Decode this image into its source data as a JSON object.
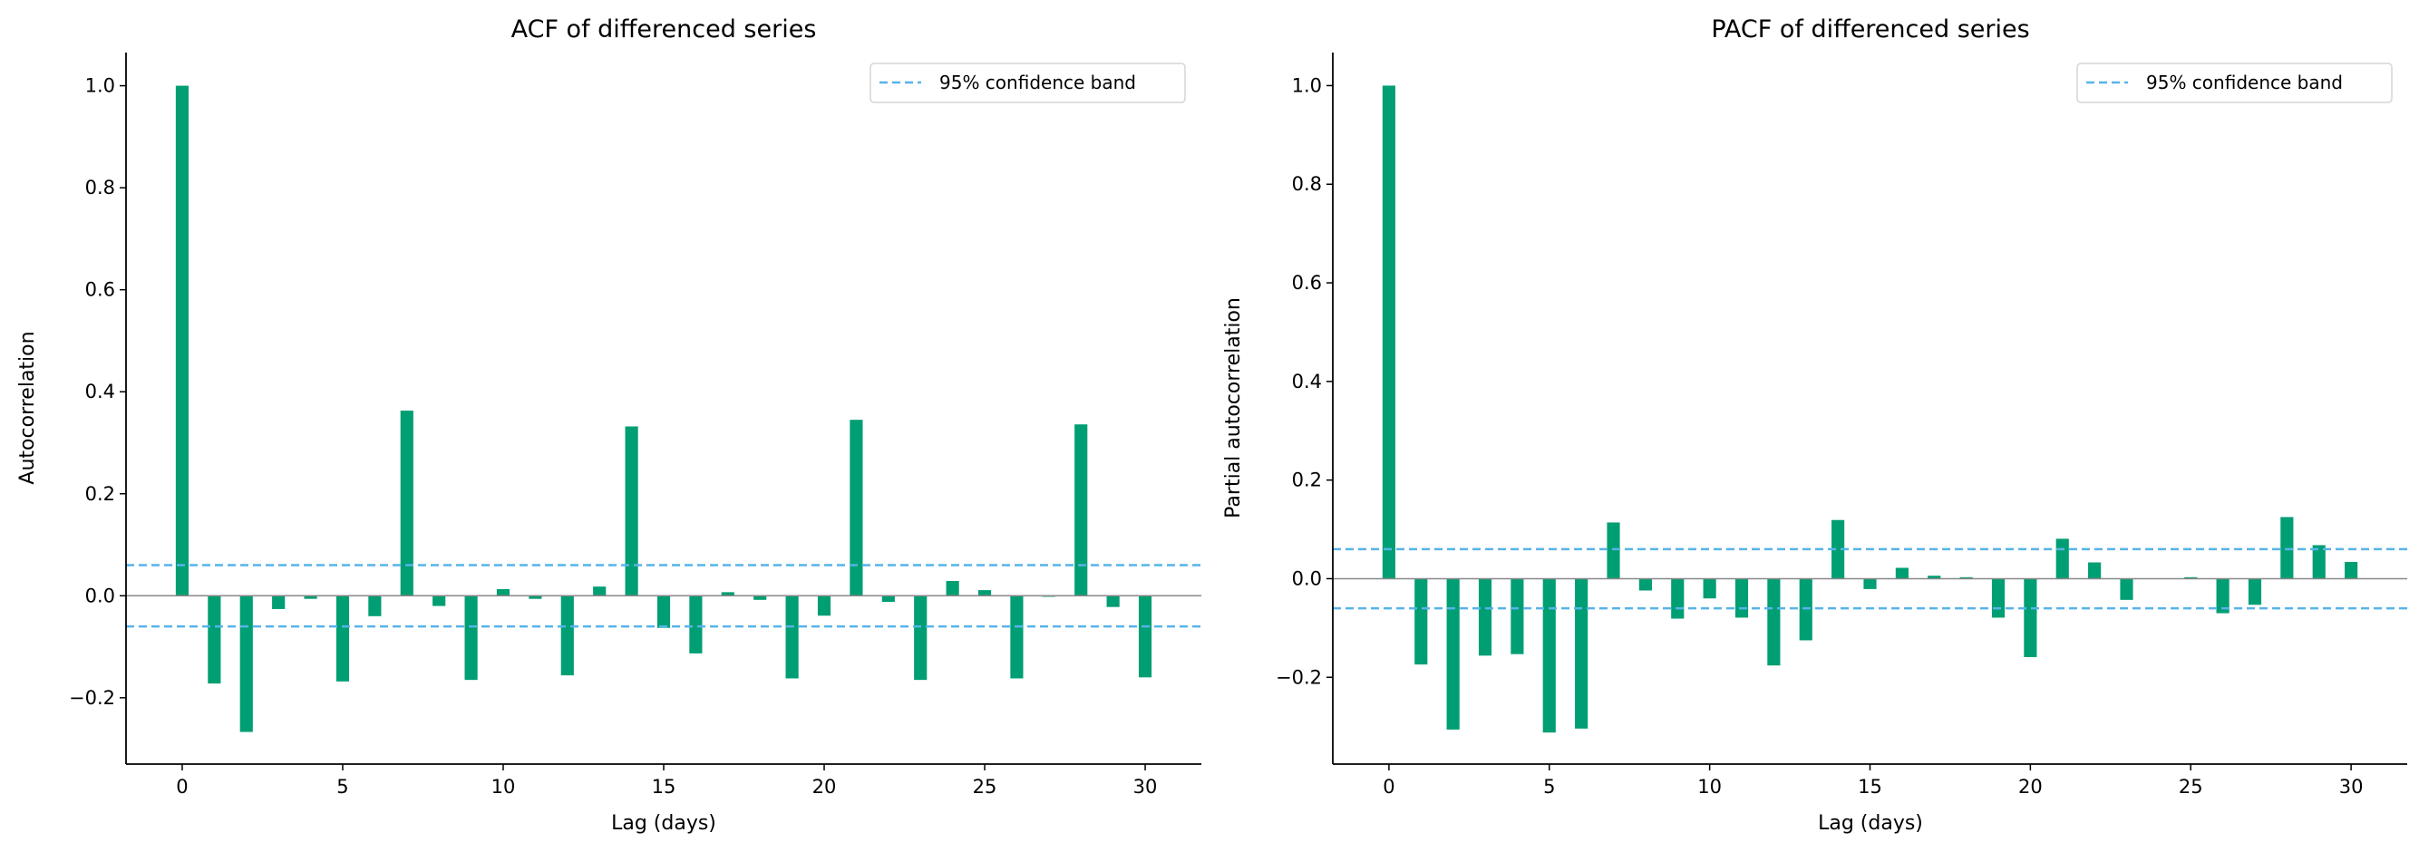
{
  "chart_data": [
    {
      "type": "bar",
      "title": "ACF of differenced series",
      "xlabel": "Lag (days)",
      "ylabel": "Autocorrelation",
      "x": [
        0,
        1,
        2,
        3,
        4,
        5,
        6,
        7,
        8,
        9,
        10,
        11,
        12,
        13,
        14,
        15,
        16,
        17,
        18,
        19,
        20,
        21,
        22,
        23,
        24,
        25,
        26,
        27,
        28,
        29,
        30
      ],
      "values": [
        1.0,
        -0.172,
        -0.267,
        -0.026,
        -0.006,
        -0.168,
        -0.04,
        0.363,
        -0.02,
        -0.165,
        0.013,
        -0.006,
        -0.156,
        0.018,
        0.332,
        -0.063,
        -0.113,
        0.007,
        -0.008,
        -0.162,
        -0.039,
        0.345,
        -0.012,
        -0.165,
        0.029,
        0.011,
        -0.162,
        -0.002,
        0.336,
        -0.022,
        -0.16
      ],
      "confidence_band": 0.06,
      "xlim": [
        -1.75,
        31.75
      ],
      "ylim": [
        -0.33,
        1.065
      ],
      "xticks": [
        0,
        5,
        10,
        15,
        20,
        25,
        30
      ],
      "yticks": [
        -0.2,
        0.0,
        0.2,
        0.4,
        0.6,
        0.8,
        1.0
      ],
      "ytick_labels": [
        "−0.2",
        "0.0",
        "0.2",
        "0.4",
        "0.6",
        "0.8",
        "1.0"
      ],
      "legend": {
        "label": "95% confidence band",
        "placement": "top-right"
      },
      "grid": false,
      "colors": {
        "bars": "#009E73",
        "band": "#56B4E9",
        "zero_line": "#888888"
      }
    },
    {
      "type": "bar",
      "title": "PACF of differenced series",
      "xlabel": "Lag (days)",
      "ylabel": "Partial autocorrelation",
      "x": [
        0,
        1,
        2,
        3,
        4,
        5,
        6,
        7,
        8,
        9,
        10,
        11,
        12,
        13,
        14,
        15,
        16,
        17,
        18,
        19,
        20,
        21,
        22,
        23,
        24,
        25,
        26,
        27,
        28,
        29,
        30
      ],
      "values": [
        1.0,
        -0.174,
        -0.306,
        -0.156,
        -0.153,
        -0.312,
        -0.304,
        0.114,
        -0.024,
        -0.081,
        -0.04,
        -0.079,
        -0.176,
        -0.125,
        0.119,
        -0.021,
        0.022,
        0.006,
        0.003,
        -0.079,
        -0.159,
        0.081,
        0.033,
        -0.043,
        -0.001,
        0.003,
        -0.07,
        -0.053,
        0.125,
        0.068,
        0.034
      ],
      "confidence_band": 0.06,
      "xlim": [
        -1.75,
        31.75
      ],
      "ylim": [
        -0.376,
        1.067
      ],
      "xticks": [
        0,
        5,
        10,
        15,
        20,
        25,
        30
      ],
      "yticks": [
        -0.2,
        0.0,
        0.2,
        0.4,
        0.6,
        0.8,
        1.0
      ],
      "ytick_labels": [
        "−0.2",
        "0.0",
        "0.2",
        "0.4",
        "0.6",
        "0.8",
        "1.0"
      ],
      "legend": {
        "label": "95% confidence band",
        "placement": "top-right"
      },
      "grid": false,
      "colors": {
        "bars": "#009E73",
        "band": "#56B4E9",
        "zero_line": "#888888"
      }
    }
  ]
}
